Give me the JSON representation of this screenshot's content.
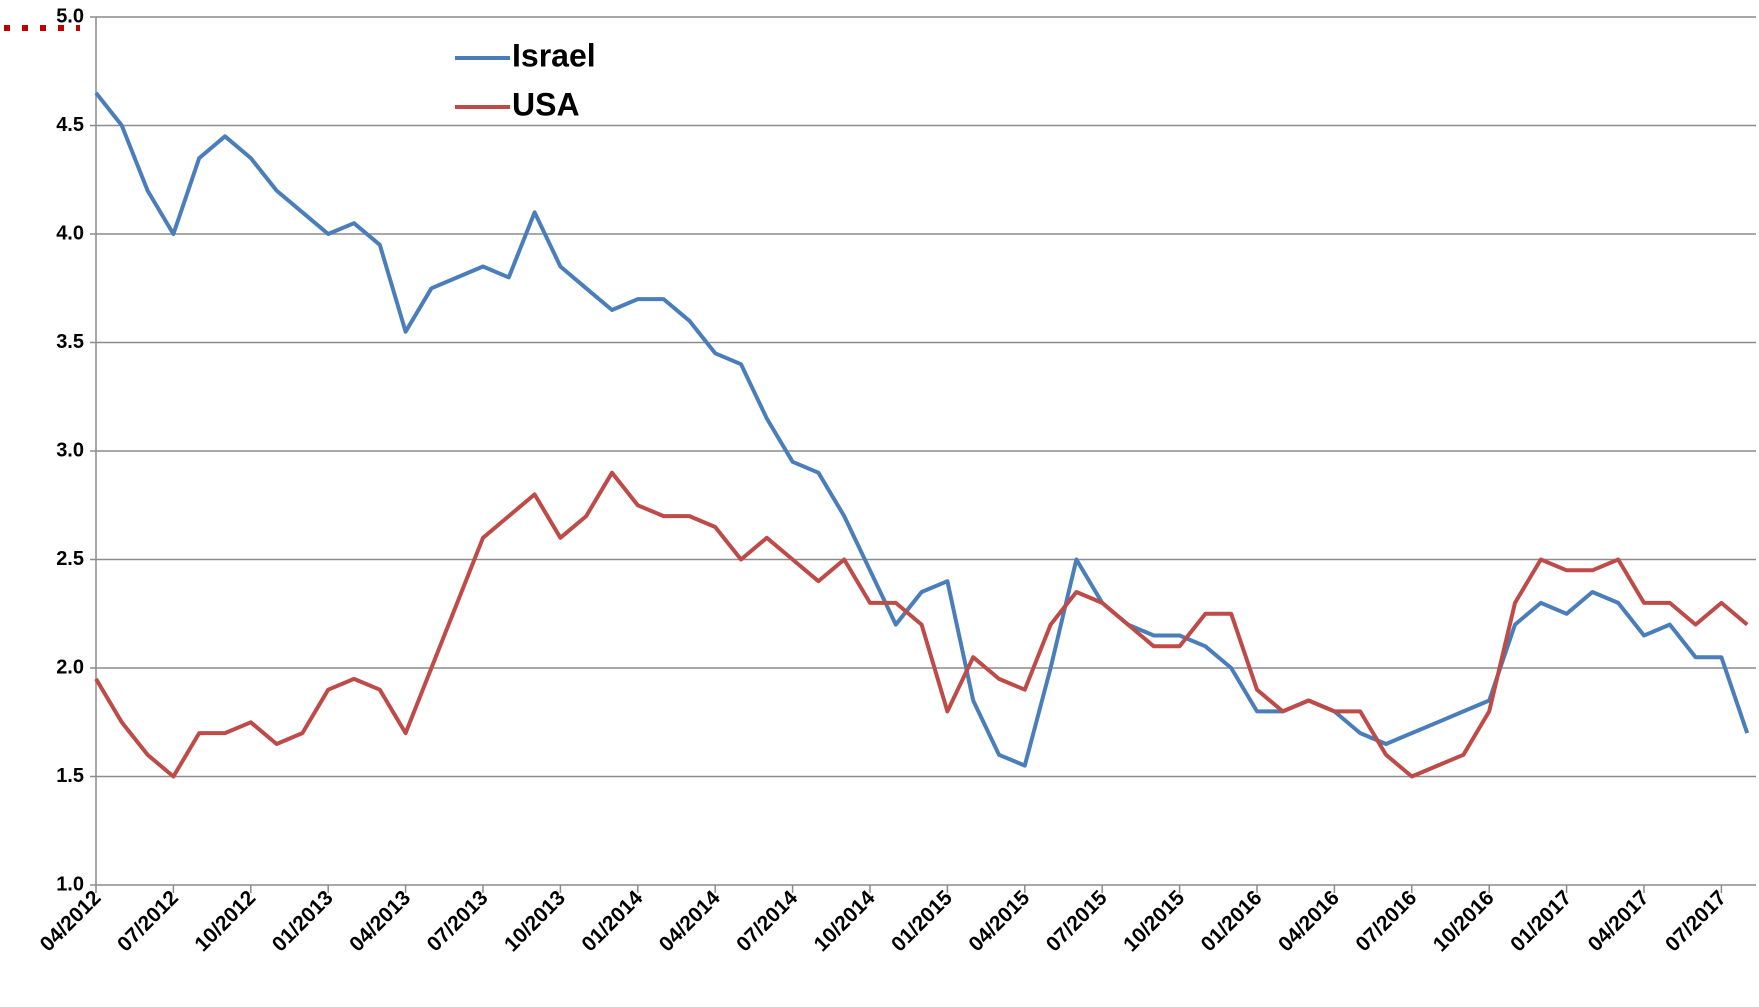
{
  "chart_data": {
    "type": "line",
    "categories": [
      "04/2012",
      null,
      null,
      "07/2012",
      null,
      null,
      "10/2012",
      null,
      null,
      "01/2013",
      null,
      null,
      "04/2013",
      null,
      null,
      "07/2013",
      null,
      null,
      "10/2013",
      null,
      null,
      "01/2014",
      null,
      null,
      "04/2014",
      null,
      null,
      "07/2014",
      null,
      null,
      "10/2014",
      null,
      null,
      "01/2015",
      null,
      null,
      "04/2015",
      null,
      null,
      "07/2015",
      null,
      null,
      "10/2015",
      null,
      null,
      "01/2016",
      null,
      null,
      "04/2016",
      null,
      null,
      "07/2016",
      null,
      null,
      "10/2016",
      null,
      null,
      "01/2017",
      null,
      null,
      "04/2017",
      null,
      null,
      "07/2017",
      null
    ],
    "series": [
      {
        "name": "Israel",
        "color": "#4a7ebb",
        "values": [
          4.65,
          4.5,
          4.2,
          4.0,
          4.35,
          4.45,
          4.35,
          4.2,
          4.1,
          4.0,
          4.05,
          3.95,
          3.55,
          3.75,
          3.8,
          3.85,
          3.8,
          4.1,
          3.85,
          3.75,
          3.65,
          3.7,
          3.7,
          3.6,
          3.45,
          3.4,
          3.15,
          2.95,
          2.9,
          2.7,
          2.45,
          2.2,
          2.35,
          2.4,
          1.85,
          1.6,
          1.55,
          2.0,
          2.5,
          2.3,
          2.2,
          2.15,
          2.15,
          2.1,
          2.0,
          1.8,
          1.8,
          1.85,
          1.8,
          1.7,
          1.65,
          1.7,
          1.75,
          1.8,
          1.85,
          2.2,
          2.3,
          2.25,
          2.35,
          2.3,
          2.15,
          2.2,
          2.05,
          2.05,
          1.7
        ]
      },
      {
        "name": "USA",
        "color": "#be4b48",
        "values": [
          1.95,
          1.75,
          1.6,
          1.5,
          1.7,
          1.7,
          1.75,
          1.65,
          1.7,
          1.9,
          1.95,
          1.9,
          1.7,
          2.0,
          2.3,
          2.6,
          2.7,
          2.8,
          2.6,
          2.7,
          2.9,
          2.75,
          2.7,
          2.7,
          2.65,
          2.5,
          2.6,
          2.5,
          2.4,
          2.5,
          2.3,
          2.3,
          2.2,
          1.8,
          2.05,
          1.95,
          1.9,
          2.2,
          2.35,
          2.3,
          2.2,
          2.1,
          2.1,
          2.25,
          2.25,
          1.9,
          1.8,
          1.85,
          1.8,
          1.8,
          1.6,
          1.5,
          1.55,
          1.6,
          1.8,
          2.3,
          2.5,
          2.45,
          2.45,
          2.5,
          2.3,
          2.3,
          2.2,
          2.3,
          2.2
        ]
      }
    ],
    "ylim": [
      1.0,
      5.0
    ],
    "yticks": [
      {
        "value": 1.0,
        "label": "1.0"
      },
      {
        "value": 1.5,
        "label": "1.5"
      },
      {
        "value": 2.0,
        "label": "2.0"
      },
      {
        "value": 2.5,
        "label": "2.5"
      },
      {
        "value": 3.0,
        "label": "3.0"
      },
      {
        "value": 3.5,
        "label": "3.5"
      },
      {
        "value": 4.0,
        "label": "4.0"
      },
      {
        "value": 4.5,
        "label": "4.5"
      },
      {
        "value": 5.0,
        "label": "5.0"
      }
    ],
    "grid": true
  }
}
